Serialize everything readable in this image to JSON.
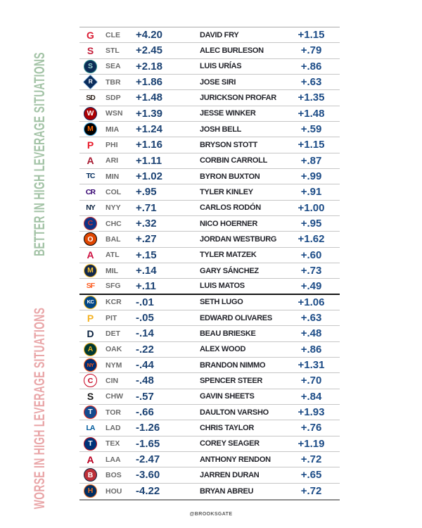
{
  "section_labels": {
    "better": {
      "text": "BETTER IN HIGH LEVERAGE SITUATIONS",
      "color": "#a3c3a6"
    },
    "worse": {
      "text": "WORSE IN HIGH LEVERAGE SITUATIONS",
      "color": "#e9a6a8"
    }
  },
  "footer": {
    "credit": "@BROOKSGATE"
  },
  "colors": {
    "team_value": "#1b4273",
    "player_value": "#1c4c87",
    "player_name": "#23242b",
    "team_abbr": "#6b6b6b",
    "row_divider": "#c6c6c6",
    "section_divider": "#161616"
  },
  "rows": [
    {
      "section": "better",
      "team": "CLE",
      "team_value": "+4.20",
      "player": "DAVID FRY",
      "player_value": "+1.15",
      "logo": {
        "style": "text",
        "fg": "#da1a32",
        "glyph": "G"
      }
    },
    {
      "section": "better",
      "team": "STL",
      "team_value": "+2.45",
      "player": "ALEC BURLESON",
      "player_value": "+.79",
      "logo": {
        "style": "text",
        "fg": "#c41e3a",
        "glyph": "S"
      }
    },
    {
      "section": "better",
      "team": "SEA",
      "team_value": "+2.18",
      "player": "LUIS URÍAS",
      "player_value": "+.86",
      "logo": {
        "style": "circle",
        "bg": "#0c2c56",
        "border": "#2e8b8b",
        "fg": "#9ad6d0",
        "glyph": "S"
      }
    },
    {
      "section": "better",
      "team": "TBR",
      "team_value": "+1.86",
      "player": "JOSE SIRI",
      "player_value": "+.63",
      "logo": {
        "style": "diamond",
        "bg": "#092c5c",
        "border": "#8fbce6",
        "fg": "#ffffff",
        "glyph": "R"
      }
    },
    {
      "section": "better",
      "team": "SDP",
      "team_value": "+1.48",
      "player": "JURICKSON PROFAR",
      "player_value": "+1.35",
      "logo": {
        "style": "text",
        "fg": "#2f241d",
        "glyph": "SD"
      }
    },
    {
      "section": "better",
      "team": "WSN",
      "team_value": "+1.39",
      "player": "JESSE WINKER",
      "player_value": "+1.48",
      "logo": {
        "style": "circle",
        "bg": "#ab0003",
        "border": "#14225a",
        "fg": "#ffffff",
        "glyph": "W"
      }
    },
    {
      "section": "better",
      "team": "MIA",
      "team_value": "+1.24",
      "player": "JOSH BELL",
      "player_value": "+.59",
      "logo": {
        "style": "circle",
        "bg": "#000000",
        "border": "#41a8e0",
        "fg": "#ff6600",
        "glyph": "M"
      }
    },
    {
      "section": "better",
      "team": "PHI",
      "team_value": "+1.16",
      "player": "BRYSON STOTT",
      "player_value": "+1.15",
      "logo": {
        "style": "text",
        "fg": "#e81828",
        "glyph": "P"
      }
    },
    {
      "section": "better",
      "team": "ARI",
      "team_value": "+1.11",
      "player": "CORBIN CARROLL",
      "player_value": "+.87",
      "logo": {
        "style": "text",
        "fg": "#a71930",
        "glyph": "A"
      }
    },
    {
      "section": "better",
      "team": "MIN",
      "team_value": "+1.02",
      "player": "BYRON BUXTON",
      "player_value": "+.99",
      "logo": {
        "style": "text",
        "fg": "#002b5c",
        "glyph": "TC"
      }
    },
    {
      "section": "better",
      "team": "COL",
      "team_value": "+.95",
      "player": "TYLER KINLEY",
      "player_value": "+.91",
      "logo": {
        "style": "text",
        "fg": "#33006f",
        "glyph": "CR"
      }
    },
    {
      "section": "better",
      "team": "NYY",
      "team_value": "+.71",
      "player": "CARLOS RODÓN",
      "player_value": "+1.00",
      "logo": {
        "style": "text",
        "fg": "#0c2340",
        "glyph": "NY"
      }
    },
    {
      "section": "better",
      "team": "CHC",
      "team_value": "+.32",
      "player": "NICO HOERNER",
      "player_value": "+.95",
      "logo": {
        "style": "circle",
        "bg": "#0e3386",
        "border": "#cc3433",
        "fg": "#cc3433",
        "glyph": "C"
      }
    },
    {
      "section": "better",
      "team": "BAL",
      "team_value": "+.27",
      "player": "JORDAN WESTBURG",
      "player_value": "+1.62",
      "logo": {
        "style": "circle",
        "bg": "#df4601",
        "border": "#000000",
        "fg": "#ffffff",
        "glyph": "O"
      }
    },
    {
      "section": "better",
      "team": "ATL",
      "team_value": "+.15",
      "player": "TYLER MATZEK",
      "player_value": "+.60",
      "logo": {
        "style": "text",
        "fg": "#ce1141",
        "glyph": "A"
      }
    },
    {
      "section": "better",
      "team": "MIL",
      "team_value": "+.14",
      "player": "GARY SÁNCHEZ",
      "player_value": "+.73",
      "logo": {
        "style": "circle",
        "bg": "#12284b",
        "border": "#ffc52f",
        "fg": "#ffc52f",
        "glyph": "M"
      }
    },
    {
      "section": "better",
      "team": "SFG",
      "team_value": "+.11",
      "player": "LUIS MATOS",
      "player_value": "+.49",
      "logo": {
        "style": "text",
        "fg": "#fd5a1e",
        "glyph": "SF"
      }
    },
    {
      "section": "worse",
      "team": "KCR",
      "team_value": "-.01",
      "player": "SETH LUGO",
      "player_value": "+1.06",
      "logo": {
        "style": "circle",
        "bg": "#004687",
        "border": "#eeb111",
        "fg": "#ffffff",
        "glyph": "KC"
      }
    },
    {
      "section": "worse",
      "team": "PIT",
      "team_value": "-.05",
      "player": "EDWARD OLIVARES",
      "player_value": "+.63",
      "logo": {
        "style": "text",
        "fg": "#f4b223",
        "glyph": "P"
      }
    },
    {
      "section": "worse",
      "team": "DET",
      "team_value": "-.14",
      "player": "BEAU BRIESKE",
      "player_value": "+.48",
      "logo": {
        "style": "text",
        "fg": "#0c2340",
        "glyph": "D"
      }
    },
    {
      "section": "worse",
      "team": "OAK",
      "team_value": "-.22",
      "player": "ALEX WOOD",
      "player_value": "+.86",
      "logo": {
        "style": "circle",
        "bg": "#003831",
        "border": "#efb21e",
        "fg": "#efb21e",
        "glyph": "A"
      }
    },
    {
      "section": "worse",
      "team": "NYM",
      "team_value": "-.44",
      "player": "BRANDON NIMMO",
      "player_value": "+1.31",
      "logo": {
        "style": "circle",
        "bg": "#002d72",
        "border": "#ff5910",
        "fg": "#ff5910",
        "glyph": "NY"
      }
    },
    {
      "section": "worse",
      "team": "CIN",
      "team_value": "-.48",
      "player": "SPENCER STEER",
      "player_value": "+.70",
      "logo": {
        "style": "circle",
        "bg": "#ffffff",
        "border": "#c6011f",
        "fg": "#c6011f",
        "glyph": "C"
      }
    },
    {
      "section": "worse",
      "team": "CHW",
      "team_value": "-.57",
      "player": "GAVIN SHEETS",
      "player_value": "+.84",
      "logo": {
        "style": "text",
        "fg": "#1a1a1a",
        "glyph": "S"
      }
    },
    {
      "section": "worse",
      "team": "TOR",
      "team_value": "-.66",
      "player": "DAULTON VARSHO",
      "player_value": "+1.93",
      "logo": {
        "style": "circle",
        "bg": "#134a8e",
        "border": "#e8291c",
        "fg": "#ffffff",
        "glyph": "T"
      }
    },
    {
      "section": "worse",
      "team": "LAD",
      "team_value": "-1.26",
      "player": "CHRIS TAYLOR",
      "player_value": "+.76",
      "logo": {
        "style": "text",
        "fg": "#005a9c",
        "glyph": "LA"
      }
    },
    {
      "section": "worse",
      "team": "TEX",
      "team_value": "-1.65",
      "player": "COREY SEAGER",
      "player_value": "+1.19",
      "logo": {
        "style": "circle",
        "bg": "#003278",
        "border": "#c0111f",
        "fg": "#ffffff",
        "glyph": "T"
      }
    },
    {
      "section": "worse",
      "team": "LAA",
      "team_value": "-2.47",
      "player": "ANTHONY RENDON",
      "player_value": "+.72",
      "logo": {
        "style": "text",
        "fg": "#ba0021",
        "glyph": "A"
      }
    },
    {
      "section": "worse",
      "team": "BOS",
      "team_value": "-3.60",
      "player": "JARREN DURAN",
      "player_value": "+.65",
      "logo": {
        "style": "circle",
        "bg": "#bd3039",
        "border": "#0c2340",
        "fg": "#ffffff",
        "glyph": "B"
      }
    },
    {
      "section": "worse",
      "team": "HOU",
      "team_value": "-4.22",
      "player": "BRYAN ABREU",
      "player_value": "+.72",
      "logo": {
        "style": "circle",
        "bg": "#002d62",
        "border": "#eb6e1f",
        "fg": "#eb6e1f",
        "glyph": "H"
      }
    }
  ]
}
